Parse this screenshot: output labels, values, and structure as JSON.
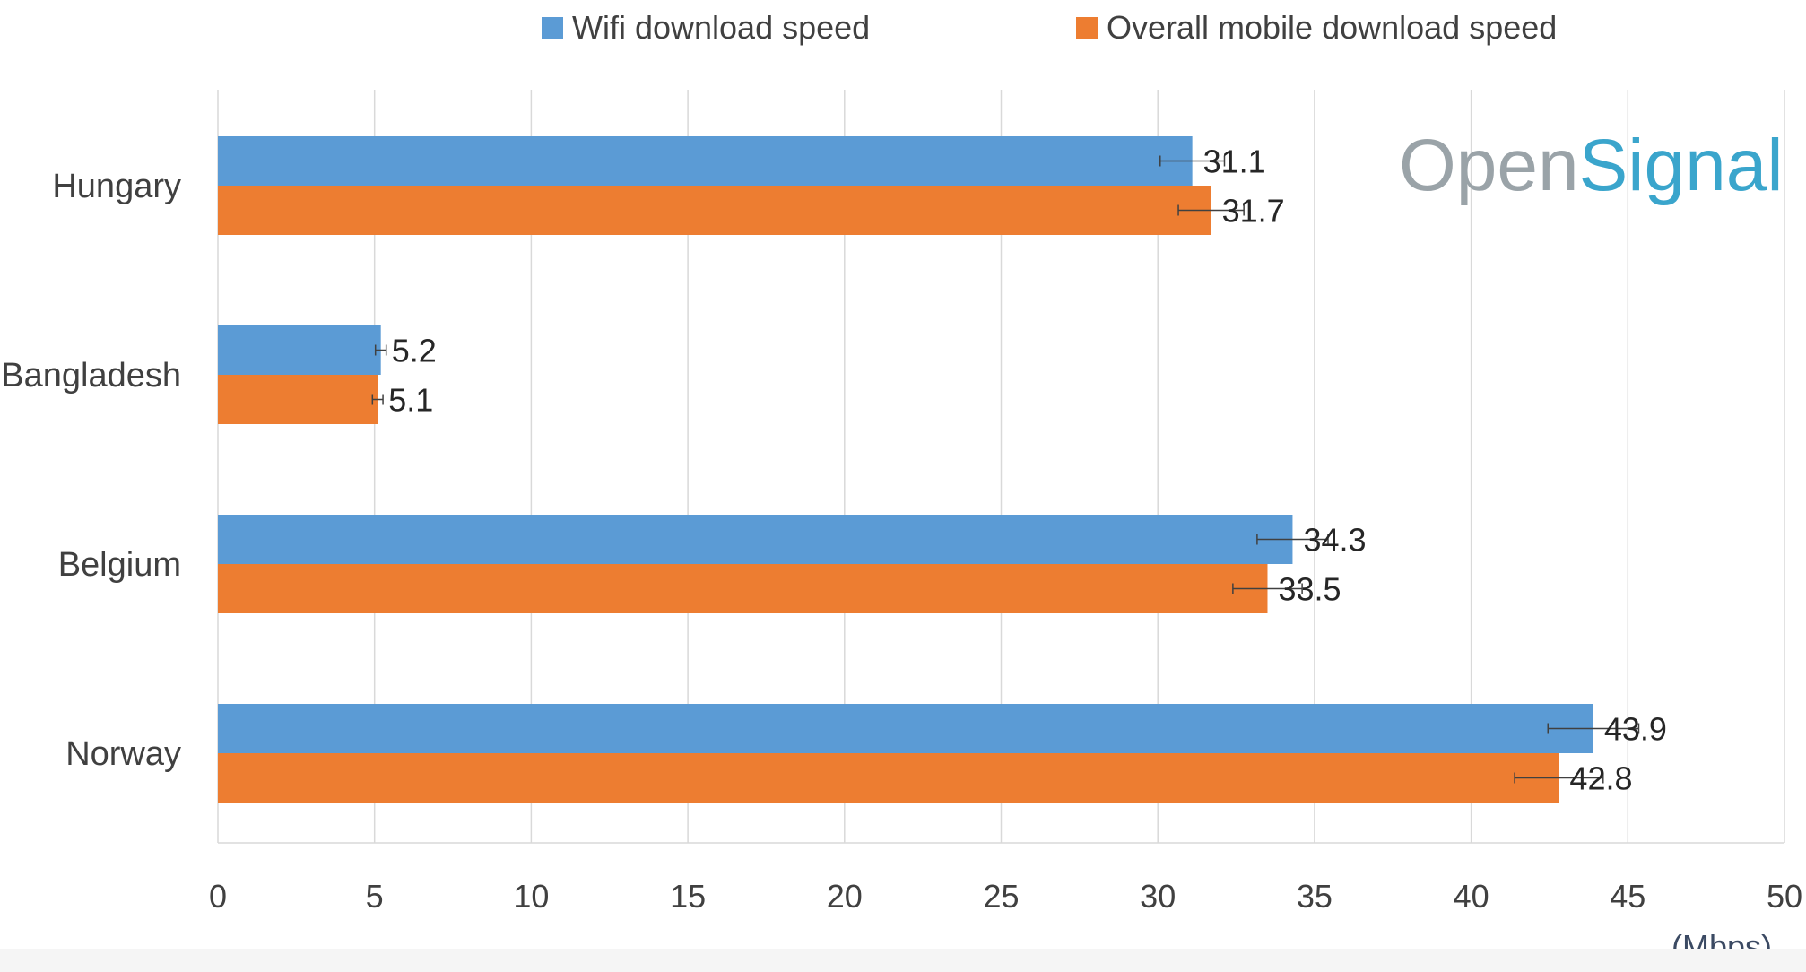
{
  "chart_data": {
    "type": "bar",
    "orientation": "horizontal",
    "categories": [
      "Hungary",
      "Bangladesh",
      "Belgium",
      "Norway"
    ],
    "series": [
      {
        "name": "Wifi download speed",
        "color": "#5b9bd5",
        "values": [
          31.1,
          5.2,
          34.3,
          43.9
        ]
      },
      {
        "name": "Overall mobile download speed",
        "color": "#ed7d31",
        "values": [
          31.7,
          5.1,
          33.5,
          42.8
        ]
      }
    ],
    "error_bars": true,
    "xlim": [
      0,
      50
    ],
    "xticks": [
      0,
      5,
      10,
      15,
      20,
      25,
      30,
      35,
      40,
      45,
      50
    ],
    "unit_label": "(Mbps)",
    "grid": true,
    "legend_position": "top-center",
    "watermark": {
      "part1": "Open",
      "part2": "Signal",
      "color1": "#9aa3a8",
      "color2": "#3aa5cc"
    }
  }
}
